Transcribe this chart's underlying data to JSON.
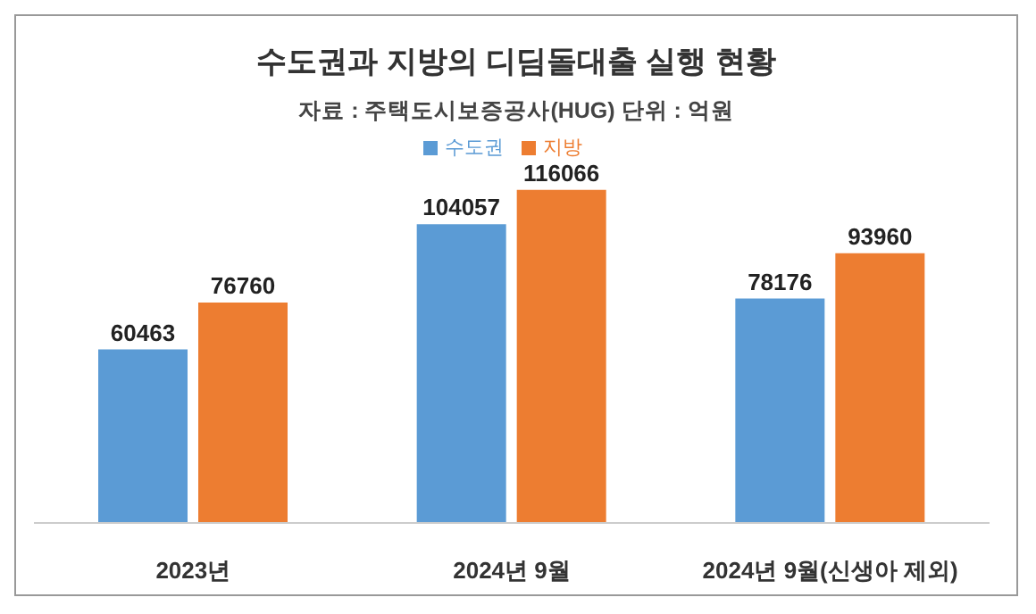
{
  "chart_data": {
    "type": "bar",
    "title": "수도권과 지방의 디딤돌대출 실행 현황",
    "subtitle": "자료 : 주택도시보증공사(HUG) 단위 : 억원",
    "categories": [
      "2023년",
      "2024년 9월",
      "2024년 9월(신생아 제외)"
    ],
    "series": [
      {
        "name": "수도권",
        "color": "#5b9bd5",
        "values": [
          60463,
          104057,
          78176
        ]
      },
      {
        "name": "지방",
        "color": "#ed7d31",
        "values": [
          76760,
          116066,
          93960
        ]
      }
    ],
    "data_labels": true,
    "legend": "top",
    "grid": false
  }
}
